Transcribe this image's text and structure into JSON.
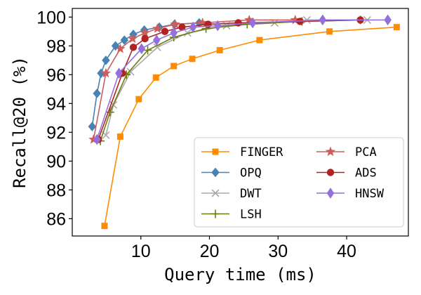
{
  "chart_data": {
    "type": "line",
    "xlabel": "Query time (ms)",
    "ylabel": "Recall@20 (%)",
    "xlim": [
      0,
      49
    ],
    "ylim": [
      84.8,
      100.6
    ],
    "x_ticks": [
      10,
      20,
      30,
      40
    ],
    "y_ticks": [
      86,
      88,
      90,
      92,
      94,
      96,
      98,
      100
    ],
    "legend_position": "bottom-right",
    "legend_columns": 2,
    "grid": false,
    "series": [
      {
        "name": "FINGER",
        "color": "#ff8c00",
        "marker": "square",
        "x": [
          4.7,
          7.0,
          9.7,
          12.2,
          14.8,
          17.5,
          21.5,
          27.3,
          37.5,
          47.3
        ],
        "y": [
          85.5,
          91.7,
          94.3,
          95.8,
          96.6,
          97.1,
          97.7,
          98.4,
          99.0,
          99.3
        ]
      },
      {
        "name": "OPQ",
        "color": "#4682b4",
        "marker": "diamond",
        "x": [
          2.9,
          3.6,
          4.2,
          4.9,
          6.3,
          7.6,
          8.9,
          10.5,
          12.7,
          14.9,
          18.5
        ],
        "y": [
          92.4,
          94.7,
          96.1,
          97.0,
          98.0,
          98.4,
          98.8,
          99.1,
          99.3,
          99.5,
          99.6
        ]
      },
      {
        "name": "DWT",
        "color": "#aaaaaa",
        "marker": "x",
        "x": [
          4.9,
          6.0,
          8.5,
          12.4,
          16.8,
          22.5,
          29.5,
          34.2,
          43.0
        ],
        "y": [
          91.8,
          93.9,
          96.2,
          97.9,
          98.9,
          99.4,
          99.6,
          99.8,
          99.8
        ]
      },
      {
        "name": "LSH",
        "color": "#6b7b0d",
        "marker": "plus",
        "x": [
          4.1,
          5.5,
          7.9,
          11.0,
          14.8,
          19.5,
          25.5,
          33.5,
          42.0
        ],
        "y": [
          91.4,
          93.4,
          96.0,
          97.7,
          98.6,
          99.2,
          99.5,
          99.7,
          99.8
        ]
      },
      {
        "name": "PCA",
        "color": "#cd5c5c",
        "marker": "star",
        "x": [
          3.1,
          4.9,
          7.0,
          8.8,
          10.6,
          12.4,
          15.0,
          19.0,
          25.8,
          32.5
        ],
        "y": [
          91.5,
          96.1,
          97.8,
          98.5,
          98.9,
          99.2,
          99.5,
          99.6,
          99.8,
          99.8
        ]
      },
      {
        "name": "ADS",
        "color": "#b22222",
        "marker": "circle",
        "x": [
          3.8,
          7.3,
          8.9,
          10.6,
          13.5,
          16.0,
          19.8,
          24.2,
          33.2,
          42.0
        ],
        "y": [
          91.5,
          96.1,
          97.9,
          98.5,
          99.0,
          99.3,
          99.5,
          99.6,
          99.7,
          99.8
        ]
      },
      {
        "name": "HNSW",
        "color": "#9370db",
        "marker": "diamond-thin",
        "x": [
          3.6,
          6.8,
          10.1,
          12.3,
          14.8,
          17.6,
          21.2,
          26.3,
          36.5,
          46.0
        ],
        "y": [
          91.5,
          96.1,
          97.8,
          98.4,
          98.9,
          99.3,
          99.4,
          99.6,
          99.8,
          99.8
        ]
      }
    ]
  }
}
